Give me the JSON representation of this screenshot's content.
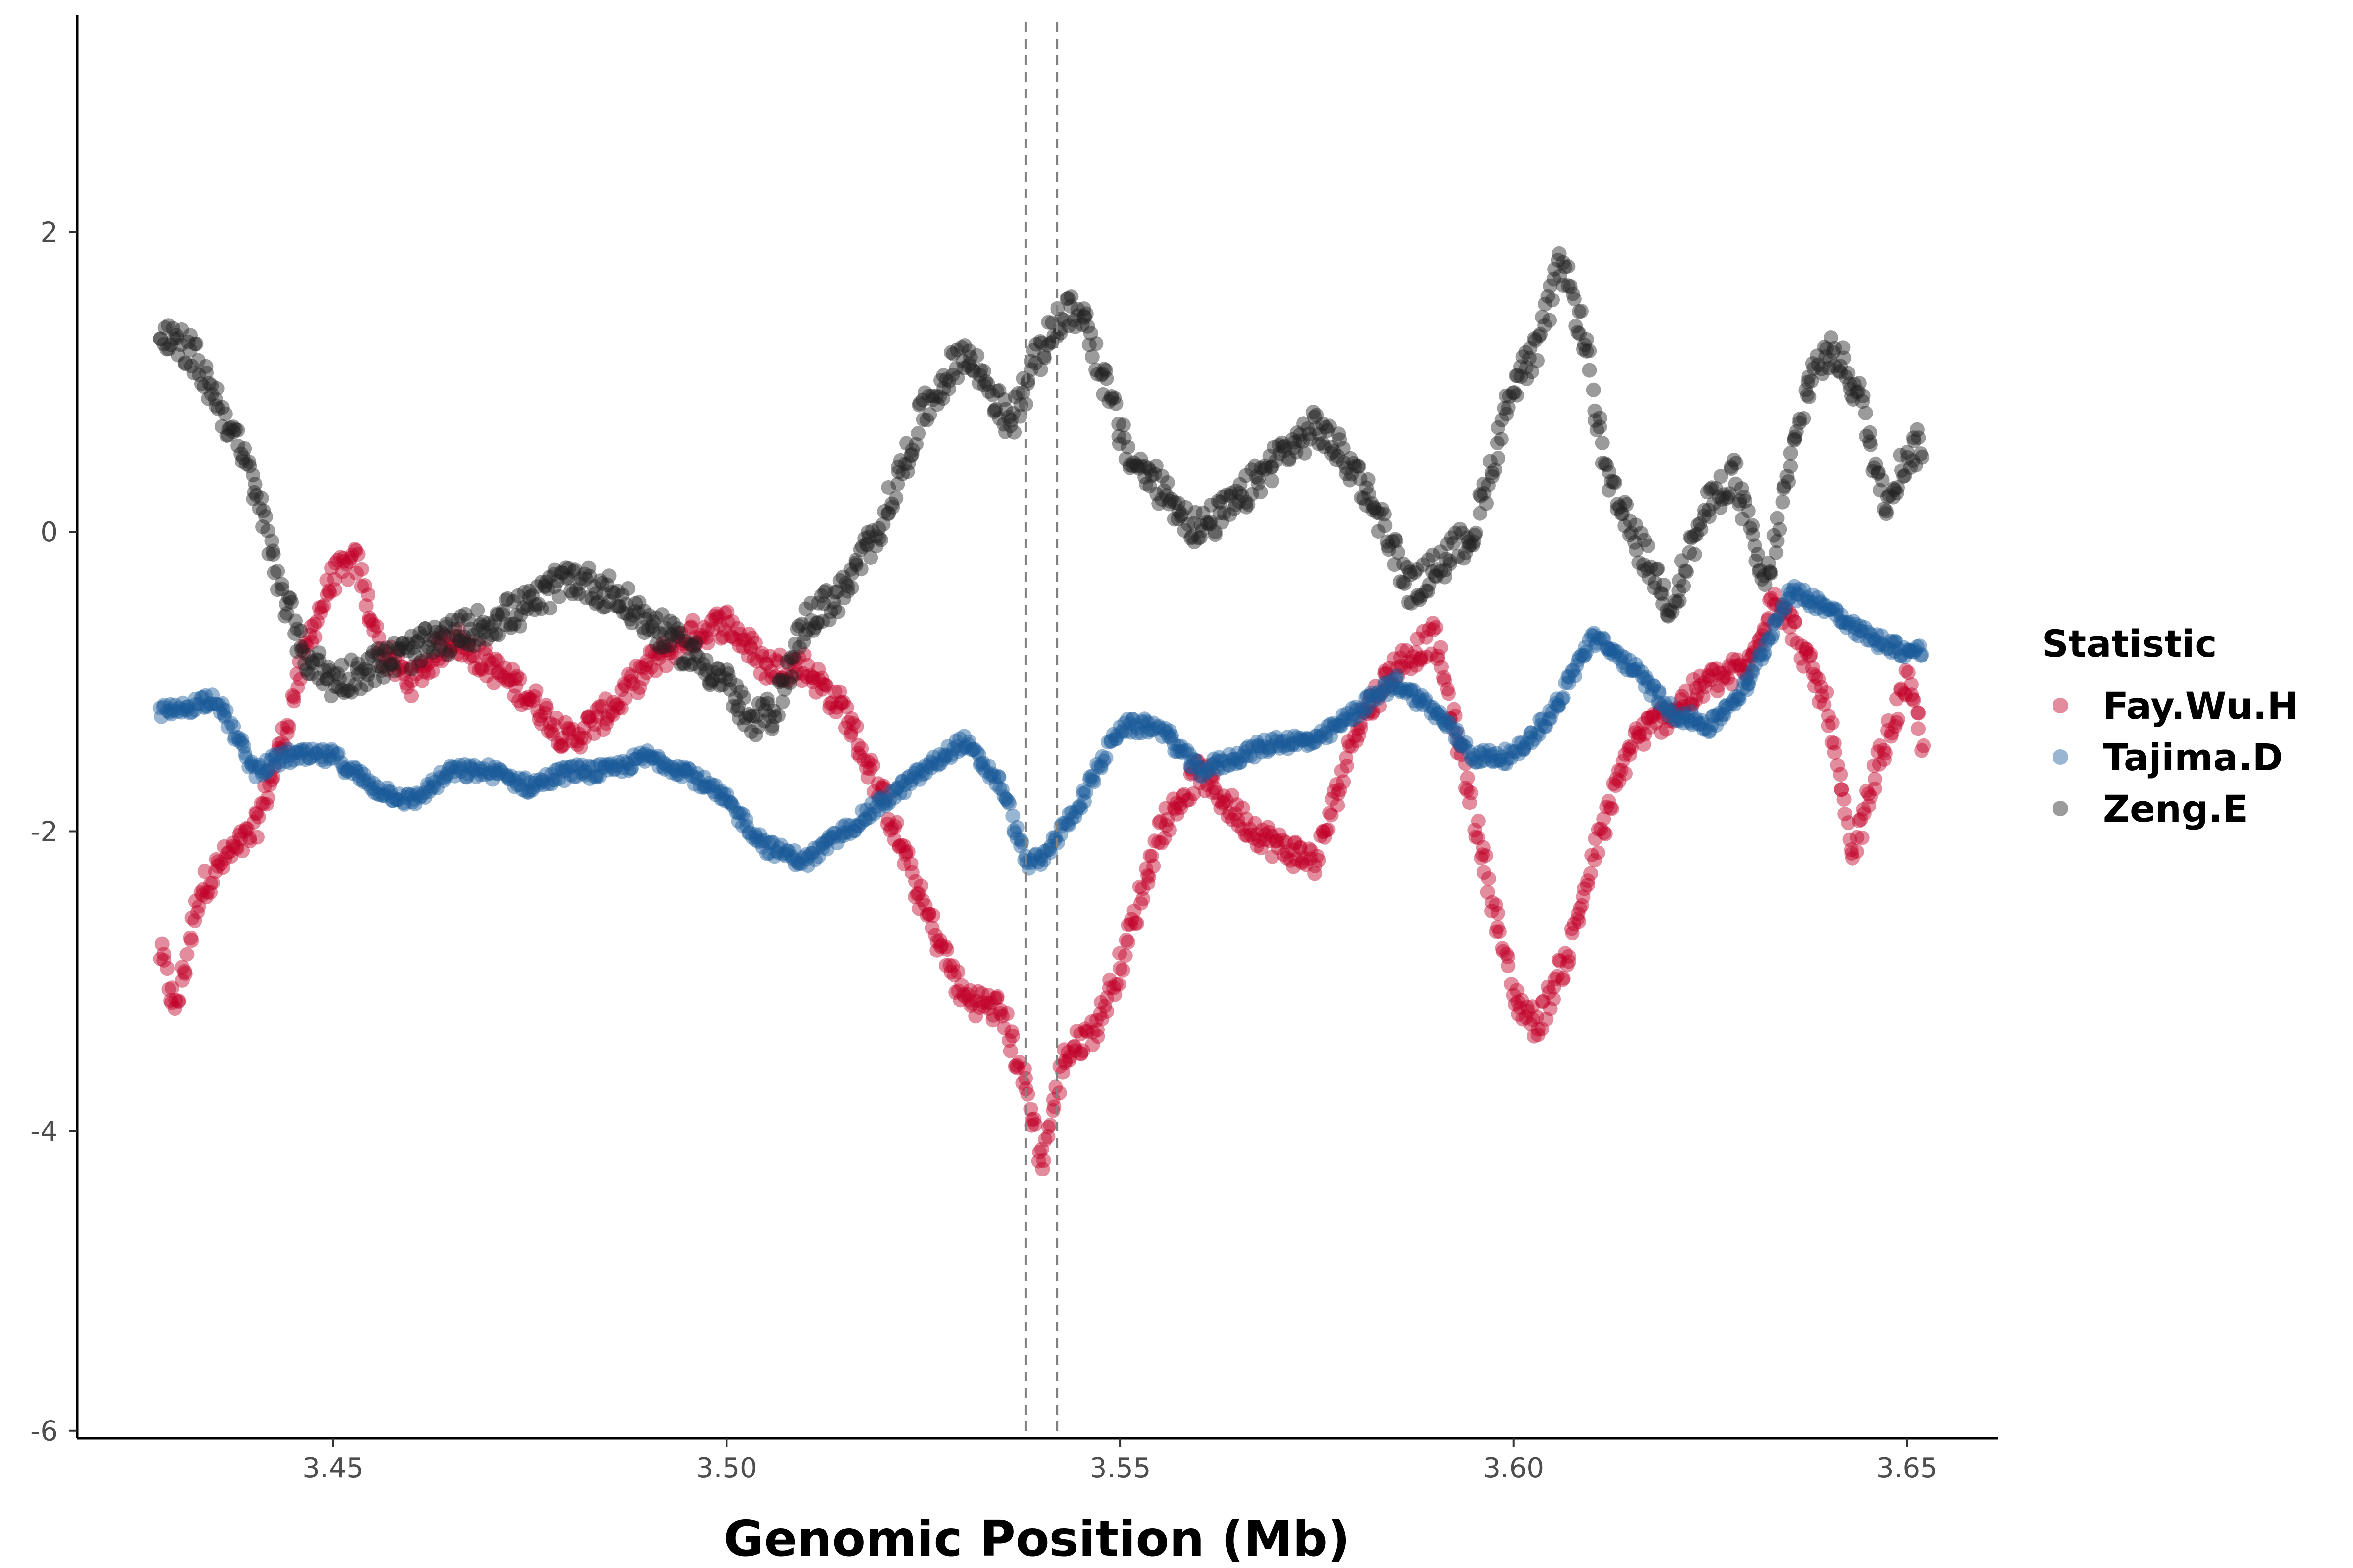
{
  "chart_data": {
    "type": "scatter",
    "title": "",
    "xlabel": "Genomic Position (Mb)",
    "ylabel": "",
    "xlim": [
      3.4175,
      3.6615
    ],
    "ylim": [
      -6.05,
      3.45
    ],
    "x_ticks": [
      3.45,
      3.5,
      3.55,
      3.6,
      3.65
    ],
    "x_tick_labels": [
      "3.45",
      "3.50",
      "3.55",
      "3.60",
      "3.65"
    ],
    "y_ticks": [
      -6,
      -4,
      -2,
      0,
      2
    ],
    "y_tick_labels": [
      "-6",
      "-4",
      "-2",
      "0",
      "2"
    ],
    "grid": false,
    "point_opacity": 0.45,
    "vlines": [
      3.538,
      3.542
    ],
    "vline_color": "#808080",
    "vline_style": "dashed",
    "legend": {
      "title": "Statistic",
      "placement": "right",
      "entries": [
        "Fay.Wu.H",
        "Tajima.D",
        "Zeng.E"
      ]
    },
    "series": [
      {
        "name": "Fay.Wu.H",
        "color": "#C00028",
        "anchors_x": [
          3.428,
          3.43,
          3.433,
          3.436,
          3.44,
          3.443,
          3.447,
          3.45,
          3.453,
          3.456,
          3.46,
          3.465,
          3.47,
          3.475,
          3.48,
          3.485,
          3.49,
          3.495,
          3.5,
          3.505,
          3.51,
          3.515,
          3.52,
          3.525,
          3.53,
          3.535,
          3.538,
          3.54,
          3.543,
          3.547,
          3.55,
          3.555,
          3.56,
          3.565,
          3.57,
          3.575,
          3.58,
          3.585,
          3.59,
          3.595,
          3.6,
          3.603,
          3.607,
          3.61,
          3.615,
          3.62,
          3.625,
          3.63,
          3.633,
          3.636,
          3.64,
          3.643,
          3.646,
          3.65,
          3.652
        ],
        "anchors_y": [
          -2.8,
          -3.2,
          -2.4,
          -2.2,
          -2.0,
          -1.5,
          -0.7,
          -0.3,
          -0.2,
          -0.8,
          -1.0,
          -0.7,
          -0.9,
          -1.1,
          -1.4,
          -1.2,
          -0.9,
          -0.7,
          -0.6,
          -0.9,
          -0.9,
          -1.2,
          -1.8,
          -2.5,
          -3.1,
          -3.2,
          -3.7,
          -4.2,
          -3.5,
          -3.3,
          -2.9,
          -2.0,
          -1.6,
          -1.9,
          -2.1,
          -2.2,
          -1.3,
          -0.9,
          -0.7,
          -1.9,
          -3.1,
          -3.3,
          -2.8,
          -2.2,
          -1.4,
          -1.2,
          -1.0,
          -0.9,
          -0.4,
          -0.7,
          -1.2,
          -2.2,
          -1.6,
          -1.0,
          -1.4
        ],
        "noise": 0.1
      },
      {
        "name": "Tajima.D",
        "color": "#1A5A9A",
        "anchors_x": [
          3.428,
          3.43,
          3.435,
          3.44,
          3.444,
          3.45,
          3.455,
          3.46,
          3.465,
          3.47,
          3.475,
          3.48,
          3.485,
          3.49,
          3.495,
          3.5,
          3.505,
          3.51,
          3.515,
          3.52,
          3.525,
          3.53,
          3.535,
          3.538,
          3.54,
          3.545,
          3.55,
          3.555,
          3.56,
          3.565,
          3.57,
          3.575,
          3.58,
          3.585,
          3.59,
          3.595,
          3.6,
          3.605,
          3.61,
          3.615,
          3.62,
          3.625,
          3.63,
          3.635,
          3.64,
          3.645,
          3.65,
          3.652
        ],
        "anchors_y": [
          -1.2,
          -1.2,
          -1.1,
          -1.6,
          -1.5,
          -1.5,
          -1.7,
          -1.8,
          -1.6,
          -1.6,
          -1.7,
          -1.6,
          -1.6,
          -1.5,
          -1.6,
          -1.8,
          -2.1,
          -2.2,
          -2.0,
          -1.8,
          -1.6,
          -1.4,
          -1.7,
          -2.2,
          -2.2,
          -1.8,
          -1.3,
          -1.3,
          -1.6,
          -1.5,
          -1.4,
          -1.4,
          -1.2,
          -1.0,
          -1.2,
          -1.5,
          -1.5,
          -1.2,
          -0.7,
          -0.9,
          -1.2,
          -1.3,
          -1.0,
          -0.4,
          -0.5,
          -0.7,
          -0.8,
          -0.8
        ],
        "noise": 0.05
      },
      {
        "name": "Zeng.E",
        "color": "#222222",
        "anchors_x": [
          3.428,
          3.432,
          3.436,
          3.44,
          3.443,
          3.446,
          3.45,
          3.455,
          3.46,
          3.465,
          3.47,
          3.475,
          3.48,
          3.485,
          3.49,
          3.495,
          3.5,
          3.503,
          3.506,
          3.51,
          3.515,
          3.52,
          3.525,
          3.53,
          3.533,
          3.536,
          3.539,
          3.542,
          3.545,
          3.548,
          3.551,
          3.555,
          3.56,
          3.565,
          3.57,
          3.575,
          3.58,
          3.583,
          3.587,
          3.591,
          3.595,
          3.6,
          3.603,
          3.606,
          3.609,
          3.612,
          3.616,
          3.62,
          3.624,
          3.628,
          3.632,
          3.635,
          3.638,
          3.641,
          3.644,
          3.647,
          3.65,
          3.652
        ],
        "anchors_y": [
          1.3,
          1.2,
          0.8,
          0.3,
          -0.3,
          -0.8,
          -1.0,
          -0.9,
          -0.8,
          -0.7,
          -0.6,
          -0.5,
          -0.3,
          -0.4,
          -0.6,
          -0.8,
          -1.0,
          -1.3,
          -1.2,
          -0.6,
          -0.4,
          0.1,
          0.8,
          1.2,
          1.0,
          0.7,
          1.1,
          1.4,
          1.5,
          1.0,
          0.5,
          0.3,
          0.0,
          0.2,
          0.5,
          0.7,
          0.4,
          0.1,
          -0.4,
          -0.2,
          0.0,
          1.0,
          1.2,
          1.8,
          1.3,
          0.3,
          -0.1,
          -0.5,
          0.1,
          0.4,
          -0.4,
          0.4,
          1.1,
          1.2,
          0.9,
          0.2,
          0.5,
          0.6
        ],
        "noise": 0.12
      }
    ]
  }
}
